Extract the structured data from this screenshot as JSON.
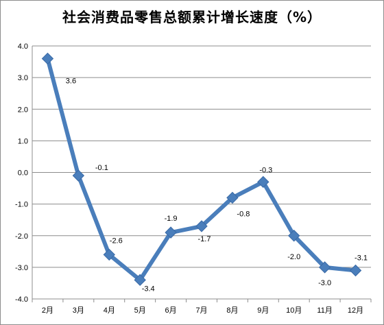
{
  "chart_data": {
    "type": "line",
    "title": "社会消费品零售总额累计增长速度（%）",
    "xlabel": "",
    "ylabel": "",
    "categories": [
      "2月",
      "3月",
      "4月",
      "5月",
      "6月",
      "7月",
      "8月",
      "9月",
      "10月",
      "11月",
      "12月"
    ],
    "series": [
      {
        "values": [
          3.6,
          -0.1,
          -2.6,
          -3.4,
          -1.9,
          -1.7,
          -0.8,
          -0.3,
          -2.0,
          -3.0,
          -3.1
        ],
        "data_labels": [
          "3.6",
          "-0.1",
          "-2.6",
          "-3.4",
          "-1.9",
          "-1.7",
          "-0.8",
          "-0.3",
          "-2.0",
          "-3.0",
          "-3.1"
        ],
        "color": "#4a7ebb",
        "marker": "diamond"
      }
    ],
    "ylim": [
      -4.0,
      4.0
    ],
    "ytick_labels": [
      "4.0",
      "3.0",
      "2.0",
      "1.0",
      "0.0",
      "-1.0",
      "-2.0",
      "-3.0",
      "-4.0"
    ],
    "grid": true,
    "legend": "none"
  },
  "colors": {
    "line": "#4a7ebb",
    "grid": "#8c8c8c",
    "axis": "#8c8c8c"
  }
}
